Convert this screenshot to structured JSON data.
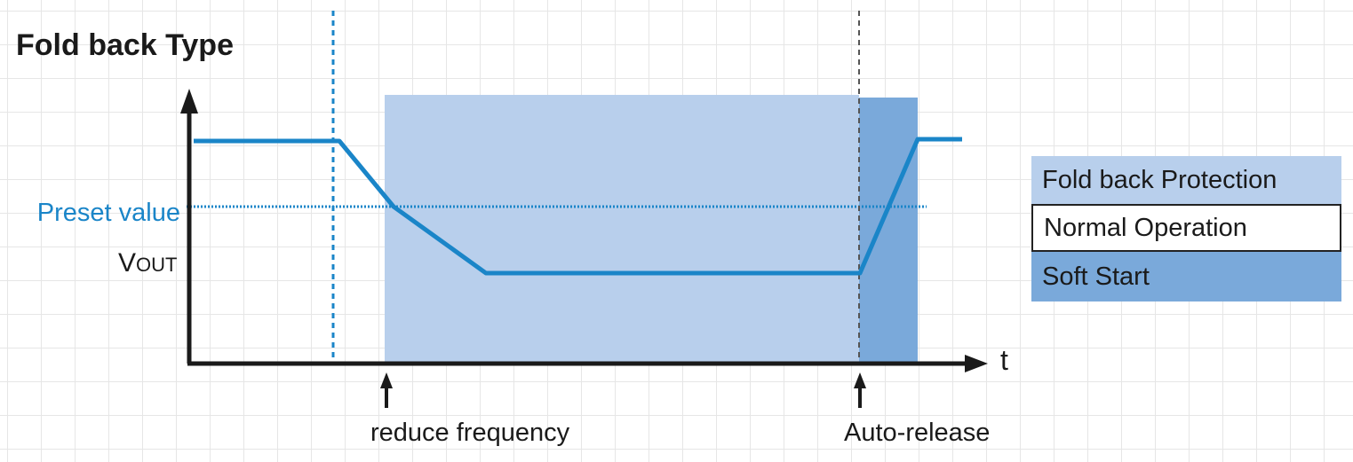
{
  "title": "Fold back Type",
  "labels": {
    "preset": "Preset value",
    "vout_main": "V",
    "vout_sub": "OUT",
    "time_axis": "t",
    "event_reduce": "reduce frequency",
    "event_release": "Auto-release"
  },
  "legend": [
    {
      "label": "Fold back Protection",
      "color": "#b8cfec"
    },
    {
      "label": "Normal Operation",
      "color": "#ffffff"
    },
    {
      "label": "Soft Start",
      "color": "#7aa9da"
    }
  ],
  "colors": {
    "signal": "#1a85c8",
    "preset_line": "#1a85c8",
    "fold_back_region": "#b8cfec",
    "soft_start_region": "#7aa9da",
    "axis": "#1a1a1a",
    "grid": "#e6e6e6"
  }
}
